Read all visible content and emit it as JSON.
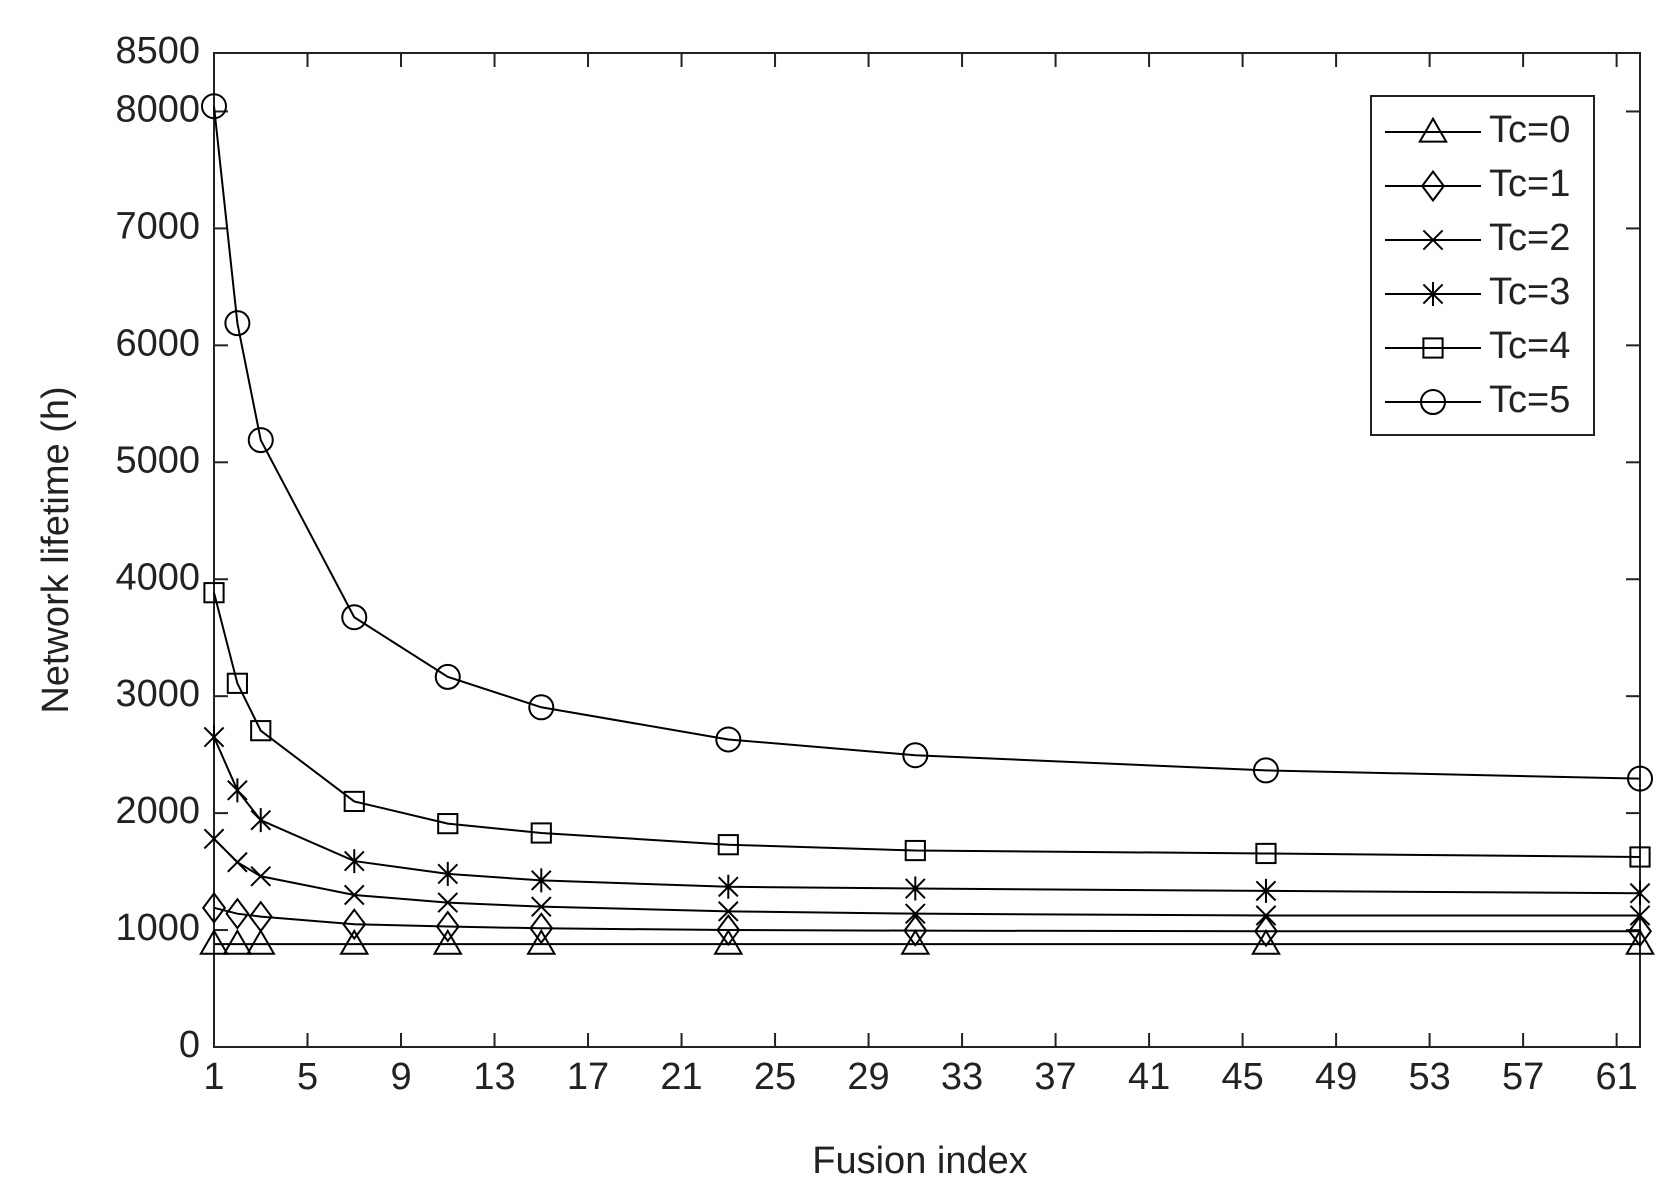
{
  "chart_data": {
    "type": "line",
    "x_label": "Fusion index",
    "y_label": "Network lifetime (h)",
    "x": [
      1,
      2,
      3,
      7,
      11,
      15,
      23,
      31,
      46,
      62
    ],
    "xlim": [
      1,
      62
    ],
    "xticks": [
      1,
      5,
      9,
      13,
      17,
      21,
      25,
      29,
      33,
      37,
      41,
      45,
      49,
      53,
      57,
      61
    ],
    "ylim": [
      0,
      8500
    ],
    "yticks": [
      0,
      1000,
      2000,
      3000,
      4000,
      5000,
      6000,
      7000,
      8000,
      8500
    ],
    "legend": "upper right",
    "grid": false,
    "series": [
      {
        "name": "Tc=0",
        "color": "#000000",
        "marker": "triangle",
        "values": [
          880,
          880,
          880,
          880,
          880,
          880,
          880,
          880,
          880,
          880
        ]
      },
      {
        "name": "Tc=1",
        "color": "#000000",
        "marker": "diamond",
        "values": [
          1190,
          1140,
          1115,
          1050,
          1030,
          1015,
          1000,
          995,
          990,
          990
        ]
      },
      {
        "name": "Tc=2",
        "color": "#000000",
        "marker": "x",
        "values": [
          1780,
          1580,
          1460,
          1300,
          1235,
          1200,
          1160,
          1140,
          1125,
          1125
        ]
      },
      {
        "name": "Tc=3",
        "color": "#000000",
        "marker": "asterisk",
        "values": [
          2650,
          2195,
          1940,
          1590,
          1480,
          1425,
          1370,
          1355,
          1335,
          1315
        ]
      },
      {
        "name": "Tc=4",
        "color": "#000000",
        "marker": "square",
        "values": [
          3885,
          3110,
          2705,
          2100,
          1910,
          1830,
          1730,
          1680,
          1655,
          1625
        ]
      },
      {
        "name": "Tc=5",
        "color": "#000000",
        "marker": "circle",
        "values": [
          8045,
          6190,
          5190,
          3675,
          3165,
          2905,
          2630,
          2495,
          2365,
          2295
        ]
      }
    ]
  }
}
